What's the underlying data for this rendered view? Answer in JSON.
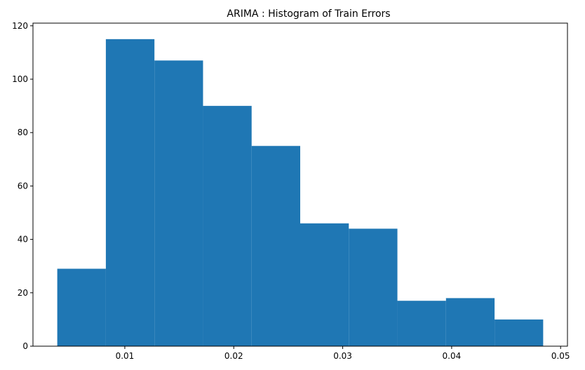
{
  "chart_data": {
    "type": "bar",
    "title": "ARIMA : Histogram of Train Errors",
    "xlabel": "",
    "ylabel": "",
    "bin_edges": [
      0.0038,
      0.00826,
      0.01272,
      0.01718,
      0.02164,
      0.0261,
      0.03056,
      0.03502,
      0.03948,
      0.04394,
      0.0484
    ],
    "values": [
      29,
      115,
      107,
      90,
      75,
      46,
      44,
      17,
      18,
      10
    ],
    "xlim": [
      0.00157,
      0.05063
    ],
    "ylim": [
      0,
      121
    ],
    "x_ticks": [
      0.01,
      0.02,
      0.03,
      0.04,
      0.05
    ],
    "x_tick_labels": [
      "0.01",
      "0.02",
      "0.03",
      "0.04",
      "0.05"
    ],
    "y_ticks": [
      0,
      20,
      40,
      60,
      80,
      100,
      120
    ],
    "y_tick_labels": [
      "0",
      "20",
      "40",
      "60",
      "80",
      "100",
      "120"
    ],
    "bar_color": "#1f77b4",
    "grid": false,
    "legend": "none"
  }
}
